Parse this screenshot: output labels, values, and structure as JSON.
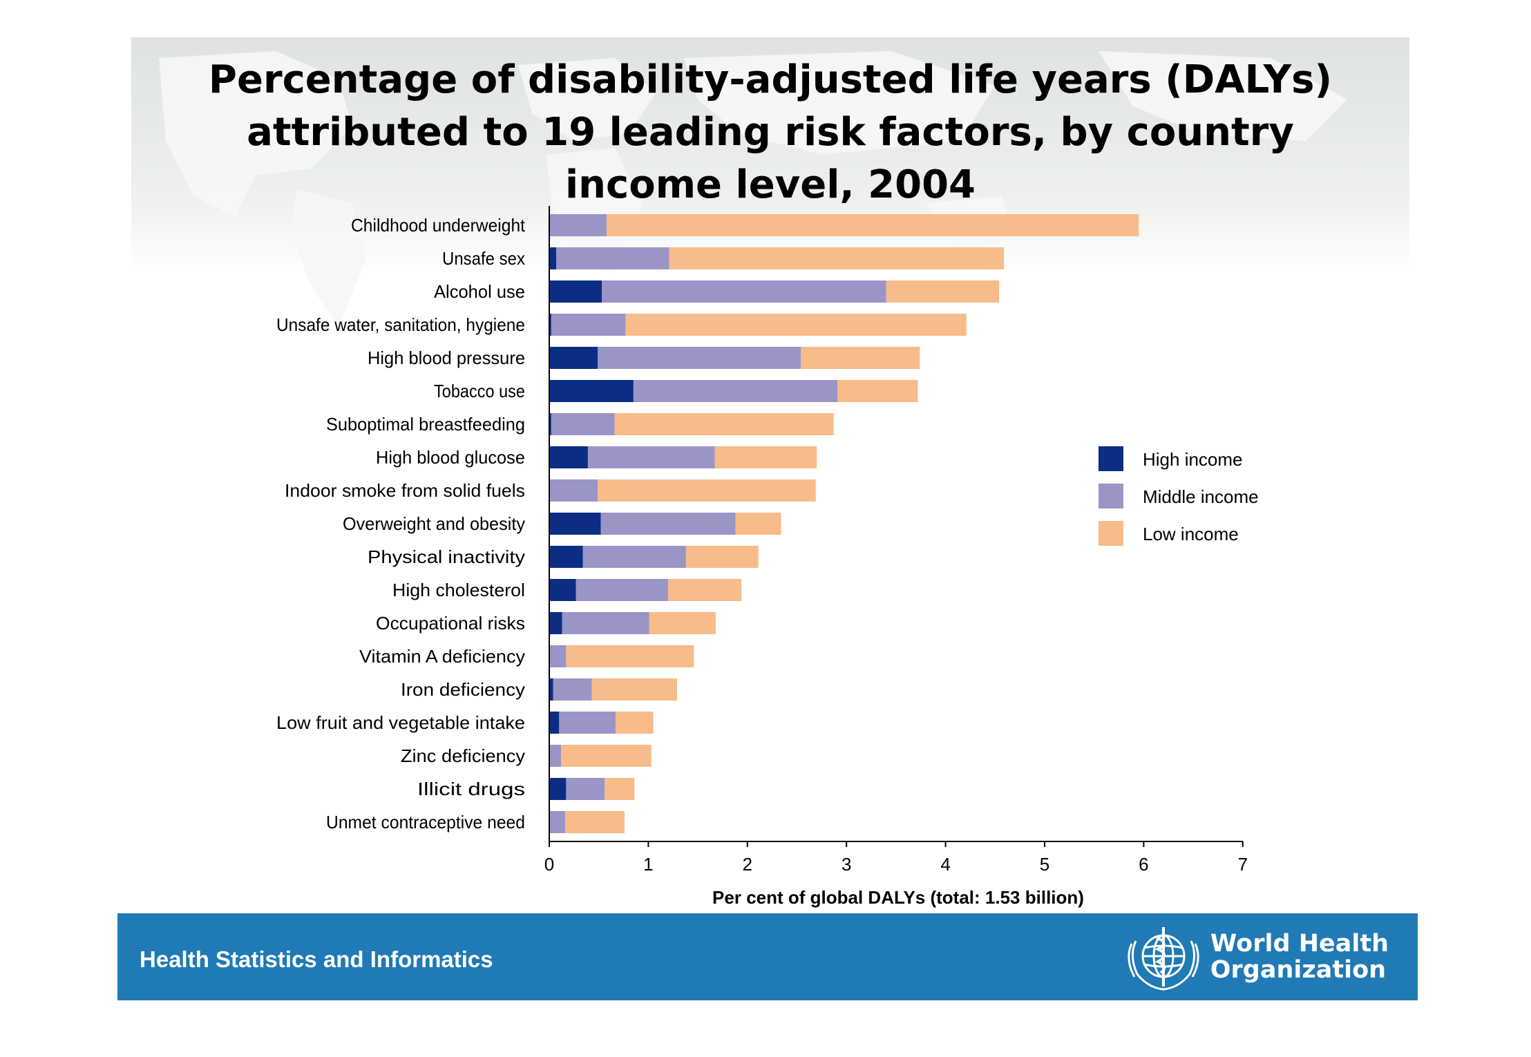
{
  "title_lines": [
    "Percentage of disability-adjusted life years (DALYs)",
    "attributed to 19 leading risk factors, by country",
    "income level, 2004"
  ],
  "footer": {
    "text": "Health Statistics and Informatics",
    "logo_line1": "World Health",
    "logo_line2": "Organization",
    "logo_icon": "who-emblem-icon"
  },
  "colors": {
    "high": "#0b2d83",
    "middle": "#9a95c6",
    "low": "#f8bb8a",
    "footer_bg": "#1f7ab5"
  },
  "chart_data": {
    "type": "bar",
    "orientation": "horizontal",
    "stacked": true,
    "title": "Percentage of disability-adjusted life years (DALYs) attributed to 19 leading risk factors, by country income level, 2004",
    "xlabel": "Per cent of global DALYs (total: 1.53 billion)",
    "ylabel": "",
    "xlim": [
      0,
      7
    ],
    "xticks": [
      "0",
      "1",
      "2",
      "3",
      "4",
      "5",
      "6",
      "7"
    ],
    "legend_position": "right",
    "categories": [
      "Childhood underweight",
      "Unsafe sex",
      "Alcohol use",
      "Unsafe water, sanitation, hygiene",
      "High blood pressure",
      "Tobacco use",
      "Suboptimal breastfeeding",
      "High blood glucose",
      "Indoor smoke from solid fuels",
      "Overweight and obesity",
      "Physical inactivity",
      "High cholesterol",
      "Occupational risks",
      "Vitamin A deficiency",
      "Iron deficiency",
      "Low fruit and vegetable intake",
      "Zinc deficiency",
      "Illicit drugs",
      "Unmet contraceptive need"
    ],
    "series": [
      {
        "name": "High income",
        "values": [
          0.0,
          0.07,
          0.53,
          0.02,
          0.49,
          0.85,
          0.02,
          0.39,
          0.0,
          0.52,
          0.34,
          0.27,
          0.13,
          0.0,
          0.04,
          0.1,
          0.0,
          0.17,
          0.0
        ]
      },
      {
        "name": "Middle income",
        "values": [
          0.58,
          1.14,
          2.87,
          0.75,
          2.05,
          2.06,
          0.64,
          1.28,
          0.49,
          1.36,
          1.04,
          0.93,
          0.88,
          0.17,
          0.39,
          0.57,
          0.12,
          0.39,
          0.16
        ]
      },
      {
        "name": "Low income",
        "values": [
          5.37,
          3.38,
          1.14,
          3.44,
          1.2,
          0.81,
          2.21,
          1.03,
          2.2,
          0.46,
          0.73,
          0.74,
          0.67,
          1.29,
          0.86,
          0.38,
          0.91,
          0.3,
          0.6
        ]
      }
    ]
  }
}
